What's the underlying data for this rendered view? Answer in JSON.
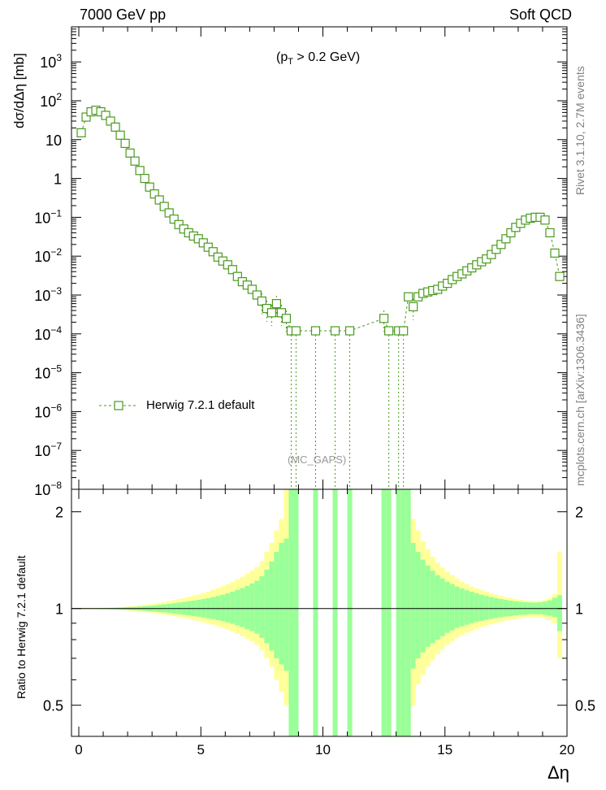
{
  "header": {
    "left": "7000 GeV pp",
    "right": "Soft QCD"
  },
  "side_labels": {
    "upper": "Rivet 3.1.10, 2.7M events",
    "lower": "mcplots.cern.ch [arXiv:1306.3436]"
  },
  "annotation": {
    "pre": "(p",
    "sub": "T",
    "post": " > 0.2 GeV)"
  },
  "watermark": "(MC_GAPS)",
  "colors": {
    "series": "#4a9a1f",
    "band_inner": "#99ff99",
    "band_outer": "#ffff99"
  },
  "chart_data": [
    {
      "type": "line",
      "panel": "main",
      "title": "",
      "ylabel": "dσ/dΔη [mb]",
      "xlabel": "",
      "xlim": [
        -0.3,
        20.0
      ],
      "ylim": [
        1e-08,
        8000
      ],
      "log_y": true,
      "ytick_labels": [
        {
          "value": 1000,
          "label": "10",
          "sup": "3"
        },
        {
          "value": 100,
          "label": "10",
          "sup": "2"
        },
        {
          "value": 10,
          "label": "10",
          "sup": ""
        },
        {
          "value": 1,
          "label": "1",
          "sup": ""
        },
        {
          "value": 0.1,
          "label": "10",
          "sup": "−1"
        },
        {
          "value": 0.01,
          "label": "10",
          "sup": "−2"
        },
        {
          "value": 0.001,
          "label": "10",
          "sup": "−3"
        },
        {
          "value": 0.0001,
          "label": "10",
          "sup": "−4"
        },
        {
          "value": 1e-05,
          "label": "10",
          "sup": "−5"
        },
        {
          "value": 1e-06,
          "label": "10",
          "sup": "−6"
        },
        {
          "value": 1e-07,
          "label": "10",
          "sup": "−7"
        },
        {
          "value": 1e-08,
          "label": "10",
          "sup": "−8"
        }
      ],
      "legend": {
        "placement": "bottom-left"
      },
      "series": [
        {
          "name": "Herwig 7.2.1 default",
          "marker": "open-square",
          "linestyle": "dashed",
          "color": "#4a9a1f",
          "x": [
            0.1,
            0.3,
            0.5,
            0.7,
            0.9,
            1.1,
            1.3,
            1.5,
            1.7,
            1.9,
            2.1,
            2.3,
            2.5,
            2.7,
            2.9,
            3.1,
            3.3,
            3.5,
            3.7,
            3.9,
            4.1,
            4.3,
            4.5,
            4.7,
            4.9,
            5.1,
            5.3,
            5.5,
            5.7,
            5.9,
            6.1,
            6.3,
            6.5,
            6.7,
            6.9,
            7.1,
            7.3,
            7.5,
            7.7,
            7.9,
            8.1,
            8.3,
            8.5,
            8.7,
            8.9,
            9.7,
            10.5,
            11.1,
            12.5,
            12.7,
            13.1,
            13.3,
            13.5,
            13.7,
            13.9,
            14.1,
            14.3,
            14.5,
            14.7,
            14.9,
            15.1,
            15.3,
            15.5,
            15.7,
            15.9,
            16.1,
            16.3,
            16.5,
            16.7,
            16.9,
            17.1,
            17.3,
            17.5,
            17.7,
            17.9,
            18.1,
            18.3,
            18.5,
            18.7,
            18.9,
            19.1,
            19.3,
            19.5,
            19.7
          ],
          "y": [
            15,
            38,
            52,
            57,
            52,
            42,
            30,
            21,
            13,
            8,
            4.5,
            2.8,
            1.6,
            1.0,
            0.6,
            0.4,
            0.28,
            0.19,
            0.13,
            0.09,
            0.065,
            0.05,
            0.04,
            0.033,
            0.028,
            0.022,
            0.017,
            0.013,
            0.0095,
            0.0075,
            0.006,
            0.0045,
            0.003,
            0.0022,
            0.0018,
            0.0014,
            0.001,
            0.0007,
            0.00045,
            0.00035,
            0.0006,
            0.00035,
            0.00025,
            0.00012,
            0.00012,
            0.00012,
            0.00012,
            0.00012,
            0.00025,
            0.00012,
            0.00012,
            0.00012,
            0.0009,
            0.0005,
            0.0009,
            0.0011,
            0.0012,
            0.0013,
            0.0014,
            0.0017,
            0.002,
            0.0025,
            0.003,
            0.0035,
            0.0042,
            0.005,
            0.006,
            0.0072,
            0.0085,
            0.011,
            0.015,
            0.02,
            0.028,
            0.04,
            0.055,
            0.07,
            0.085,
            0.095,
            0.1,
            0.1,
            0.085,
            0.04,
            0.012,
            0.003
          ]
        }
      ]
    },
    {
      "type": "area",
      "panel": "ratio",
      "ylabel": "Ratio to Herwig 7.2.1 default",
      "xlabel": "Δη",
      "xlim": [
        -0.3,
        20.0
      ],
      "ylim": [
        0.4,
        2.35
      ],
      "log_y": true,
      "xtick_labels": [
        "0",
        "5",
        "10",
        "15",
        "20"
      ],
      "xtick_values": [
        0,
        5,
        10,
        15,
        20
      ],
      "ytick_labels": [
        "0.5",
        "1",
        "2"
      ],
      "ytick_values": [
        0.5,
        1,
        2
      ],
      "reference_line": 1,
      "band_x_min": [
        0,
        0.2,
        0.4,
        0.6,
        0.8,
        1.0,
        1.2,
        1.4,
        1.6,
        1.8,
        2.0,
        2.2,
        2.4,
        2.6,
        2.8,
        3.0,
        3.2,
        3.4,
        3.6,
        3.8,
        4.0,
        4.2,
        4.4,
        4.6,
        4.8,
        5.0,
        5.2,
        5.4,
        5.6,
        5.8,
        6.0,
        6.2,
        6.4,
        6.6,
        6.8,
        7.0,
        7.2,
        7.4,
        7.6,
        7.8,
        8.0,
        8.2,
        8.4,
        8.6,
        8.8,
        9.6,
        10.4,
        11.0,
        12.4,
        12.6,
        13.0,
        13.2,
        13.4,
        13.6,
        13.8,
        14.0,
        14.2,
        14.4,
        14.6,
        14.8,
        15.0,
        15.2,
        15.4,
        15.6,
        15.8,
        16.0,
        16.2,
        16.4,
        16.6,
        16.8,
        17.0,
        17.2,
        17.4,
        17.6,
        17.8,
        18.0,
        18.2,
        18.4,
        18.6,
        18.8,
        19.0,
        19.2,
        19.4,
        19.6
      ],
      "stat_up": [
        0.002,
        0.002,
        0.002,
        0.002,
        0.003,
        0.003,
        0.004,
        0.005,
        0.006,
        0.008,
        0.01,
        0.012,
        0.014,
        0.016,
        0.019,
        0.022,
        0.026,
        0.03,
        0.034,
        0.038,
        0.043,
        0.048,
        0.053,
        0.058,
        0.064,
        0.07,
        0.077,
        0.085,
        0.094,
        0.104,
        0.115,
        0.128,
        0.142,
        0.158,
        0.176,
        0.196,
        0.22,
        0.26,
        0.32,
        0.4,
        0.5,
        0.6,
        0.65,
        1.4,
        1.4,
        1.4,
        1.4,
        1.4,
        1.4,
        1.4,
        1.4,
        1.4,
        1.4,
        0.6,
        0.5,
        0.42,
        0.36,
        0.31,
        0.27,
        0.24,
        0.21,
        0.19,
        0.17,
        0.155,
        0.14,
        0.127,
        0.115,
        0.104,
        0.094,
        0.085,
        0.077,
        0.07,
        0.064,
        0.058,
        0.053,
        0.049,
        0.046,
        0.044,
        0.043,
        0.045,
        0.05,
        0.06,
        0.08,
        0.1
      ],
      "tot_up": [
        0.004,
        0.004,
        0.004,
        0.004,
        0.005,
        0.006,
        0.007,
        0.008,
        0.01,
        0.013,
        0.016,
        0.019,
        0.023,
        0.027,
        0.031,
        0.036,
        0.042,
        0.048,
        0.055,
        0.062,
        0.07,
        0.078,
        0.087,
        0.096,
        0.106,
        0.117,
        0.129,
        0.142,
        0.157,
        0.173,
        0.19,
        0.21,
        0.232,
        0.256,
        0.283,
        0.313,
        0.346,
        0.4,
        0.5,
        0.6,
        0.75,
        0.9,
        1.4,
        1.4,
        1.4,
        1.4,
        1.4,
        1.4,
        1.4,
        1.4,
        1.4,
        1.4,
        1.4,
        0.9,
        0.75,
        0.62,
        0.53,
        0.45,
        0.39,
        0.34,
        0.3,
        0.27,
        0.24,
        0.21,
        0.19,
        0.17,
        0.155,
        0.14,
        0.127,
        0.115,
        0.104,
        0.094,
        0.085,
        0.077,
        0.07,
        0.064,
        0.059,
        0.055,
        0.053,
        0.056,
        0.065,
        0.08,
        0.11,
        0.5
      ],
      "stat_down": [
        0.002,
        0.002,
        0.002,
        0.002,
        0.003,
        0.003,
        0.004,
        0.005,
        0.006,
        0.008,
        0.01,
        0.012,
        0.014,
        0.016,
        0.019,
        0.022,
        0.025,
        0.028,
        0.032,
        0.036,
        0.04,
        0.044,
        0.048,
        0.052,
        0.057,
        0.062,
        0.068,
        0.074,
        0.08,
        0.087,
        0.095,
        0.104,
        0.114,
        0.125,
        0.137,
        0.15,
        0.165,
        0.19,
        0.22,
        0.26,
        0.3,
        0.33,
        0.36,
        0.7,
        0.7,
        0.7,
        0.7,
        0.7,
        0.7,
        0.7,
        0.7,
        0.7,
        0.7,
        0.35,
        0.3,
        0.27,
        0.24,
        0.22,
        0.2,
        0.18,
        0.16,
        0.145,
        0.13,
        0.12,
        0.11,
        0.1,
        0.092,
        0.085,
        0.078,
        0.072,
        0.066,
        0.061,
        0.056,
        0.052,
        0.048,
        0.045,
        0.042,
        0.04,
        0.039,
        0.04,
        0.045,
        0.05,
        0.06,
        0.15
      ],
      "tot_down": [
        0.004,
        0.004,
        0.004,
        0.004,
        0.005,
        0.006,
        0.007,
        0.008,
        0.01,
        0.013,
        0.016,
        0.019,
        0.023,
        0.026,
        0.03,
        0.034,
        0.038,
        0.043,
        0.048,
        0.053,
        0.059,
        0.065,
        0.071,
        0.078,
        0.085,
        0.093,
        0.101,
        0.11,
        0.12,
        0.13,
        0.141,
        0.153,
        0.166,
        0.18,
        0.195,
        0.21,
        0.23,
        0.26,
        0.3,
        0.34,
        0.4,
        0.45,
        0.5,
        0.7,
        0.7,
        0.7,
        0.7,
        0.7,
        0.7,
        0.7,
        0.7,
        0.7,
        0.7,
        0.5,
        0.42,
        0.38,
        0.34,
        0.31,
        0.28,
        0.25,
        0.23,
        0.21,
        0.19,
        0.175,
        0.16,
        0.147,
        0.135,
        0.125,
        0.115,
        0.106,
        0.098,
        0.09,
        0.083,
        0.077,
        0.071,
        0.066,
        0.062,
        0.059,
        0.058,
        0.06,
        0.068,
        0.08,
        0.1,
        0.3
      ]
    }
  ]
}
